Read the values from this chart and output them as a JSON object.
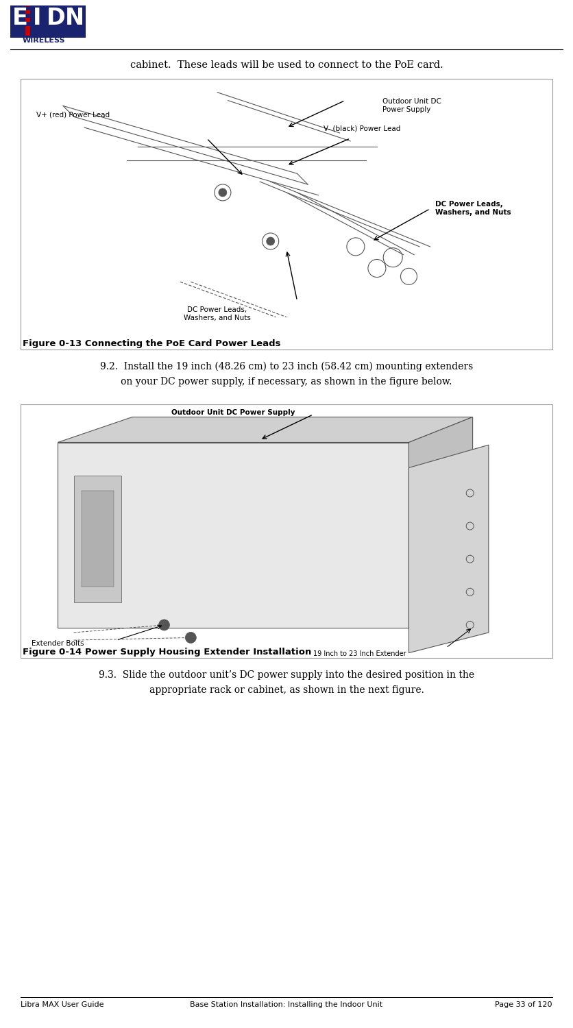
{
  "bg_color": "#ffffff",
  "page_width": 8.36,
  "page_height": 15.0,
  "intro_text": "cabinet.  These leads will be used to connect to the PoE card.",
  "fig1_caption": "Figure 0-13 Connecting the PoE Card Power Leads",
  "fig2_caption": "Figure 0-14 Power Supply Housing Extender Installation",
  "para_92_line1": "9.2.  Install the 19 inch (48.26 cm) to 23 inch (58.42 cm) mounting extenders",
  "para_92_line2": "         on your DC power supply, if necessary, as shown in the figure below.",
  "para_93_line1": "9.3.  Slide the outdoor unit’s DC power supply into the desired position in the",
  "para_93_line2": "         appropriate rack or cabinet, as shown in the next figure.",
  "footer_left": "Libra MAX User Guide",
  "footer_center": "Base Station Installation: Installing the Indoor Unit",
  "footer_right": "Page 33 of 120",
  "logo_color": "#1a2370",
  "logo_red": "#cc0000",
  "border_color": "#999999",
  "line_color": "#555555"
}
